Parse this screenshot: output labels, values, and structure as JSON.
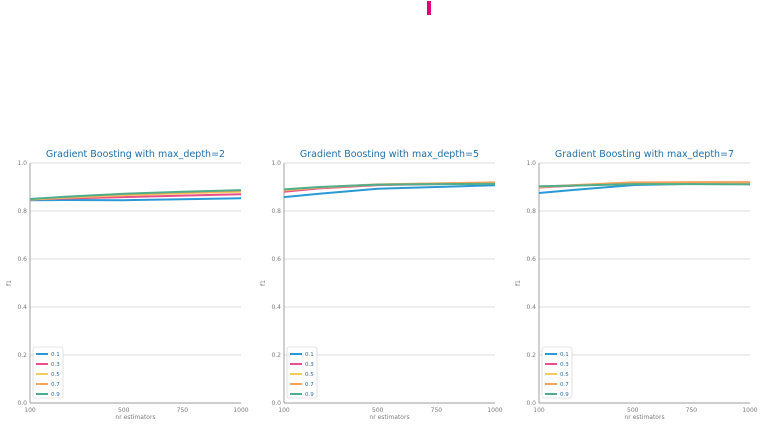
{
  "colors": {
    "accent_mark": "#e0007a",
    "title": "#1f6fa8",
    "grid": "#d0d0d0",
    "axis": "#888888",
    "legend_border": "#cccccc",
    "legend_text": "#1f6fa8"
  },
  "chart_data": [
    {
      "type": "line",
      "title": "Gradient Boosting with max_depth=2",
      "xlabel": "nr estimators",
      "ylabel": "f1",
      "xlim": [
        100,
        1000
      ],
      "ylim": [
        0.0,
        1.0
      ],
      "xticks": [
        "100",
        "500",
        "750",
        "1000"
      ],
      "yticks": [
        "0.0",
        "0.2",
        "0.4",
        "0.6",
        "0.8",
        "1.0"
      ],
      "grid": true,
      "legend_position": "lower-left",
      "x": [
        100,
        250,
        500,
        750,
        1000
      ],
      "series": [
        {
          "name": "0.1",
          "color": "#2a9ad6",
          "values": [
            0.845,
            0.846,
            0.845,
            0.849,
            0.853
          ]
        },
        {
          "name": "0.3",
          "color": "#e94f8a",
          "values": [
            0.848,
            0.852,
            0.858,
            0.864,
            0.87
          ]
        },
        {
          "name": "0.5",
          "color": "#f2cd5b",
          "values": [
            0.848,
            0.855,
            0.866,
            0.874,
            0.88
          ]
        },
        {
          "name": "0.7",
          "color": "#f5a25a",
          "values": [
            0.849,
            0.857,
            0.869,
            0.878,
            0.884
          ]
        },
        {
          "name": "0.9",
          "color": "#4fae8b",
          "values": [
            0.85,
            0.859,
            0.872,
            0.88,
            0.887
          ]
        }
      ]
    },
    {
      "type": "line",
      "title": "Gradient Boosting with max_depth=5",
      "xlabel": "nr estimators",
      "ylabel": "f1",
      "xlim": [
        100,
        1000
      ],
      "ylim": [
        0.0,
        1.0
      ],
      "xticks": [
        "100",
        "500",
        "750",
        "1000"
      ],
      "yticks": [
        "0.0",
        "0.2",
        "0.4",
        "0.6",
        "0.8",
        "1.0"
      ],
      "grid": true,
      "legend_position": "lower-left",
      "x": [
        100,
        250,
        500,
        750,
        1000
      ],
      "series": [
        {
          "name": "0.1",
          "color": "#2a9ad6",
          "values": [
            0.858,
            0.872,
            0.893,
            0.9,
            0.907
          ]
        },
        {
          "name": "0.3",
          "color": "#e94f8a",
          "values": [
            0.88,
            0.894,
            0.908,
            0.912,
            0.916
          ]
        },
        {
          "name": "0.5",
          "color": "#f2cd5b",
          "values": [
            0.886,
            0.898,
            0.91,
            0.914,
            0.918
          ]
        },
        {
          "name": "0.7",
          "color": "#f5a25a",
          "values": [
            0.888,
            0.899,
            0.911,
            0.915,
            0.919
          ]
        },
        {
          "name": "0.9",
          "color": "#4fae8b",
          "values": [
            0.89,
            0.9,
            0.91,
            0.912,
            0.913
          ]
        }
      ]
    },
    {
      "type": "line",
      "title": "Gradient Boosting with max_depth=7",
      "xlabel": "nr estimators",
      "ylabel": "f1",
      "xlim": [
        100,
        1000
      ],
      "ylim": [
        0.0,
        1.0
      ],
      "xticks": [
        "100",
        "500",
        "750",
        "1000"
      ],
      "yticks": [
        "0.0",
        "0.2",
        "0.4",
        "0.6",
        "0.8",
        "1.0"
      ],
      "grid": true,
      "legend_position": "lower-left",
      "x": [
        100,
        250,
        500,
        750,
        1000
      ],
      "series": [
        {
          "name": "0.1",
          "color": "#2a9ad6",
          "values": [
            0.875,
            0.888,
            0.908,
            0.913,
            0.915
          ]
        },
        {
          "name": "0.3",
          "color": "#e94f8a",
          "values": [
            0.898,
            0.906,
            0.917,
            0.919,
            0.92
          ]
        },
        {
          "name": "0.5",
          "color": "#f2cd5b",
          "values": [
            0.9,
            0.907,
            0.918,
            0.919,
            0.919
          ]
        },
        {
          "name": "0.7",
          "color": "#f5a25a",
          "values": [
            0.901,
            0.908,
            0.919,
            0.92,
            0.92
          ]
        },
        {
          "name": "0.9",
          "color": "#4fae8b",
          "values": [
            0.903,
            0.906,
            0.912,
            0.912,
            0.911
          ]
        }
      ]
    }
  ]
}
